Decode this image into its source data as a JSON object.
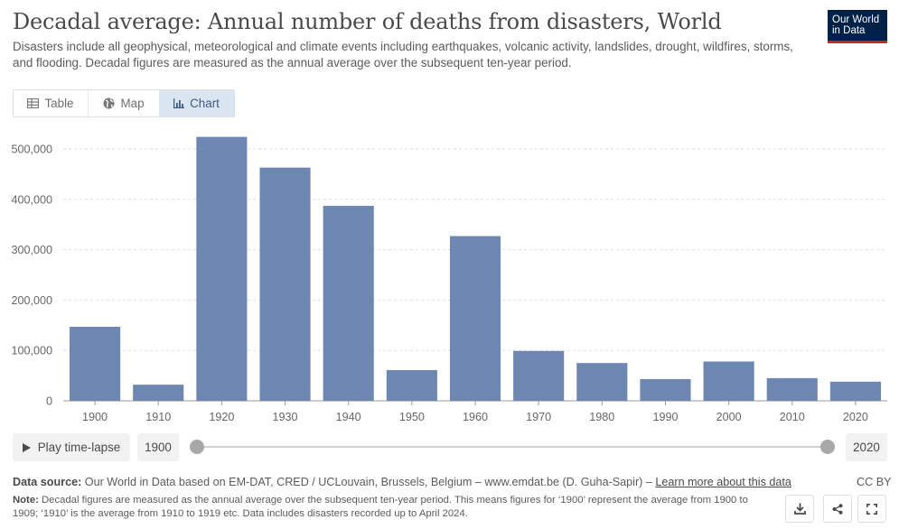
{
  "header": {
    "title": "Decadal average: Annual number of deaths from disasters, World",
    "subtitle": "Disasters include all geophysical, meteorological and climate events including earthquakes, volcanic activity, landslides, drought, wildfires, storms, and flooding. Decadal figures are measured as the annual average over the subsequent ten-year period."
  },
  "logo": {
    "line1": "Our World",
    "line2": "in Data"
  },
  "tabs": [
    {
      "label": "Table",
      "icon": "table-icon"
    },
    {
      "label": "Map",
      "icon": "globe-icon"
    },
    {
      "label": "Chart",
      "icon": "chart-icon",
      "active": true
    }
  ],
  "chart_data": {
    "type": "bar",
    "categories": [
      "1900",
      "1910",
      "1920",
      "1930",
      "1940",
      "1950",
      "1960",
      "1970",
      "1980",
      "1990",
      "2000",
      "2010",
      "2020"
    ],
    "values": [
      147000,
      32000,
      524000,
      463000,
      387000,
      61000,
      327000,
      99000,
      75000,
      43000,
      78000,
      45000,
      38000
    ],
    "ylim": [
      0,
      500000
    ],
    "yticks": [
      0,
      100000,
      200000,
      300000,
      400000,
      500000
    ],
    "ytick_labels": [
      "0",
      "100,000",
      "200,000",
      "300,000",
      "400,000",
      "500,000"
    ],
    "grid": true,
    "bar_color": "#6d87b0",
    "title": "",
    "xlabel": "",
    "ylabel": ""
  },
  "timeline": {
    "play_label": "Play time-lapse",
    "start_year": "1900",
    "end_year": "2020"
  },
  "footer": {
    "source_label": "Data source:",
    "source_text": "Our World in Data based on EM-DAT, CRED / UCLouvain, Brussels, Belgium – www.emdat.be (D. Guha-Sapir) –",
    "learn_more": "Learn more about this data",
    "license": "CC BY",
    "note_label": "Note:",
    "note_text": "Decadal figures are measured as the annual average over the subsequent ten-year period. This means figures for ‘1900’ represent the average from 1900 to 1909; ‘1910’ is the average from 1910 to 1919 etc. Data includes disasters recorded up to April 2024."
  },
  "actions": [
    {
      "icon": "download-icon"
    },
    {
      "icon": "share-icon"
    },
    {
      "icon": "fullscreen-icon"
    }
  ]
}
